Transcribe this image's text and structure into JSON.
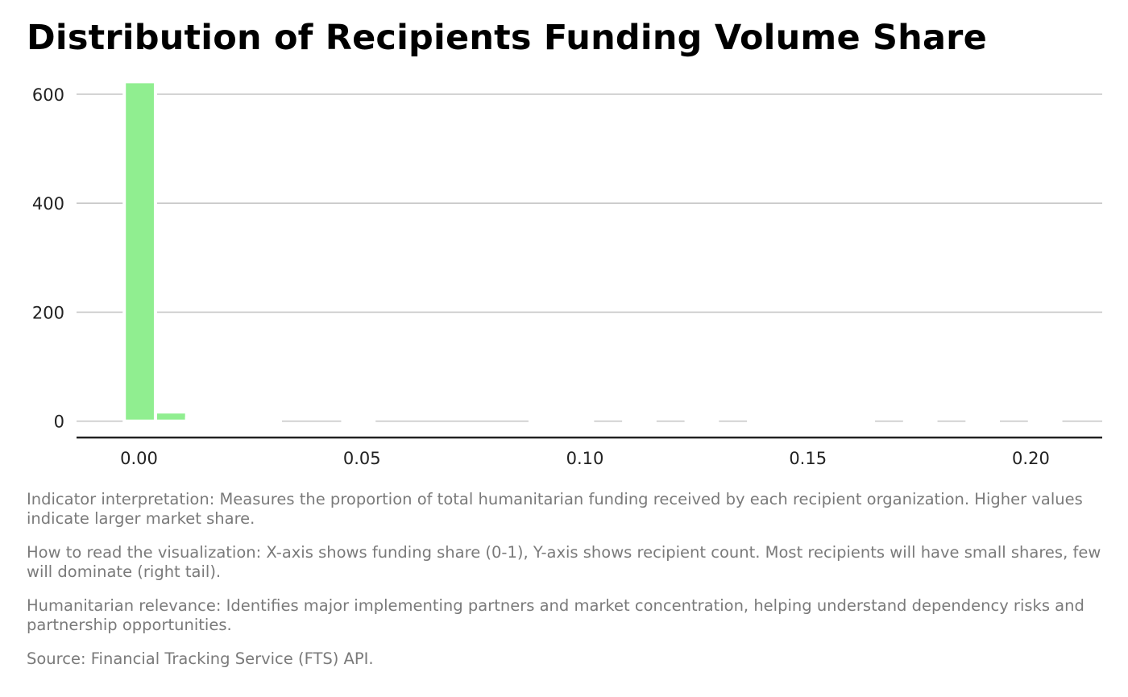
{
  "chart_data": {
    "type": "bar",
    "title": "Distribution of Recipients Funding Volume Share",
    "xlabel": "",
    "ylabel": "",
    "xlim": [
      -0.014,
      0.216
    ],
    "ylim": [
      -30,
      625
    ],
    "x_ticks": [
      0.0,
      0.05,
      0.1,
      0.15,
      0.2
    ],
    "x_tick_labels": [
      "0.00",
      "0.05",
      "0.10",
      "0.15",
      "0.20"
    ],
    "y_ticks": [
      0,
      200,
      400,
      600
    ],
    "y_tick_labels": [
      "0",
      "200",
      "400",
      "600"
    ],
    "grid": true,
    "bar_color": "#90ee90",
    "bin_width": 0.007,
    "bins": [
      {
        "x0": -0.0033,
        "count": 623
      },
      {
        "x0": 0.0037,
        "count": 17
      },
      {
        "x0": 0.0107,
        "count": 5
      },
      {
        "x0": 0.0177,
        "count": 2
      },
      {
        "x0": 0.0247,
        "count": 1
      },
      {
        "x0": 0.0457,
        "count": 1
      },
      {
        "x0": 0.0877,
        "count": 1
      },
      {
        "x0": 0.0947,
        "count": 1
      },
      {
        "x0": 0.1087,
        "count": 1
      },
      {
        "x0": 0.1227,
        "count": 1
      },
      {
        "x0": 0.1367,
        "count": 1
      },
      {
        "x0": 0.1437,
        "count": 1
      },
      {
        "x0": 0.1507,
        "count": 1
      },
      {
        "x0": 0.1577,
        "count": 1
      },
      {
        "x0": 0.1717,
        "count": 1
      },
      {
        "x0": 0.1857,
        "count": 1
      },
      {
        "x0": 0.1997,
        "count": 1
      }
    ]
  },
  "notes": {
    "interpretation": "Indicator interpretation: Measures the proportion of total humanitarian funding received by each recipient organization. Higher values indicate larger market share.",
    "how_to_read": "How to read the visualization: X-axis shows funding share (0-1), Y-axis shows recipient count. Most recipients will have small shares, few will dominate (right tail).",
    "relevance": "Humanitarian relevance: Identifies major implementing partners and market concentration, helping understand dependency risks and partnership opportunities.",
    "source": "Source: Financial Tracking Service (FTS) API."
  }
}
